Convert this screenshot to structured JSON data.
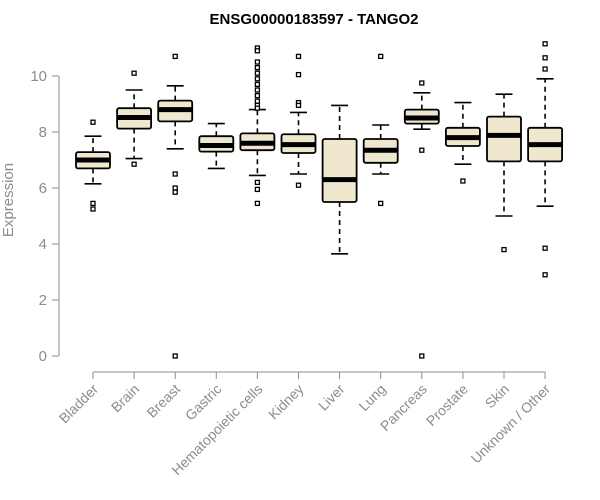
{
  "chart_data": {
    "type": "boxplot",
    "title": "ENSG00000183597 - TANGO2",
    "xlabel": "",
    "ylabel": "Expression",
    "ylim": [
      0,
      11.2
    ],
    "yticks": [
      0,
      2,
      4,
      6,
      8,
      10
    ],
    "grid": false,
    "legend": "none",
    "colors": {
      "box_fill": "#efe8cf",
      "line": "#000000",
      "axis": "#8c8c8c"
    },
    "categories": [
      "Bladder",
      "Brain",
      "Breast",
      "Gastric",
      "Hematopoietic cells",
      "Kidney",
      "Liver",
      "Lung",
      "Pancreas",
      "Prostate",
      "Skin",
      "Unknown / Other"
    ],
    "boxes": [
      {
        "category": "Bladder",
        "whisker_low": 6.15,
        "q1": 6.7,
        "median": 7.0,
        "q3": 7.28,
        "whisker_high": 7.85,
        "outliers": [
          8.35,
          5.45,
          5.25
        ]
      },
      {
        "category": "Brain",
        "whisker_low": 7.05,
        "q1": 8.12,
        "median": 8.52,
        "q3": 8.85,
        "whisker_high": 9.5,
        "outliers": [
          10.1,
          6.85
        ]
      },
      {
        "category": "Breast",
        "whisker_low": 7.4,
        "q1": 8.38,
        "median": 8.8,
        "q3": 9.12,
        "whisker_high": 9.65,
        "outliers": [
          10.7,
          6.5,
          6.0,
          5.85,
          0.0
        ]
      },
      {
        "category": "Gastric",
        "whisker_low": 6.7,
        "q1": 7.3,
        "median": 7.52,
        "q3": 7.85,
        "whisker_high": 8.3,
        "outliers": []
      },
      {
        "category": "Hematopoietic cells",
        "whisker_low": 6.45,
        "q1": 7.35,
        "median": 7.6,
        "q3": 7.95,
        "whisker_high": 8.8,
        "outliers": [
          11.0,
          10.9,
          10.5,
          10.3,
          10.1,
          9.9,
          9.7,
          9.5,
          9.3,
          9.1,
          8.95,
          8.85,
          6.2,
          5.95,
          5.45
        ]
      },
      {
        "category": "Kidney",
        "whisker_low": 6.5,
        "q1": 7.25,
        "median": 7.55,
        "q3": 7.92,
        "whisker_high": 8.7,
        "outliers": [
          10.7,
          10.05,
          9.05,
          8.95,
          6.1
        ]
      },
      {
        "category": "Liver",
        "whisker_low": 3.65,
        "q1": 5.5,
        "median": 6.3,
        "q3": 7.75,
        "whisker_high": 8.95,
        "outliers": []
      },
      {
        "category": "Lung",
        "whisker_low": 6.5,
        "q1": 6.9,
        "median": 7.35,
        "q3": 7.75,
        "whisker_high": 8.25,
        "outliers": [
          10.7,
          5.45
        ]
      },
      {
        "category": "Pancreas",
        "whisker_low": 8.1,
        "q1": 8.3,
        "median": 8.5,
        "q3": 8.8,
        "whisker_high": 9.4,
        "outliers": [
          9.75,
          7.35,
          0.0
        ]
      },
      {
        "category": "Prostate",
        "whisker_low": 6.85,
        "q1": 7.5,
        "median": 7.8,
        "q3": 8.15,
        "whisker_high": 9.05,
        "outliers": [
          6.25
        ]
      },
      {
        "category": "Skin",
        "whisker_low": 5.0,
        "q1": 6.95,
        "median": 7.88,
        "q3": 8.55,
        "whisker_high": 9.35,
        "outliers": [
          3.8
        ]
      },
      {
        "category": "Unknown / Other",
        "whisker_low": 5.35,
        "q1": 6.95,
        "median": 7.55,
        "q3": 8.15,
        "whisker_high": 9.9,
        "outliers": [
          11.15,
          10.65,
          10.25,
          3.85,
          2.9
        ]
      }
    ]
  }
}
